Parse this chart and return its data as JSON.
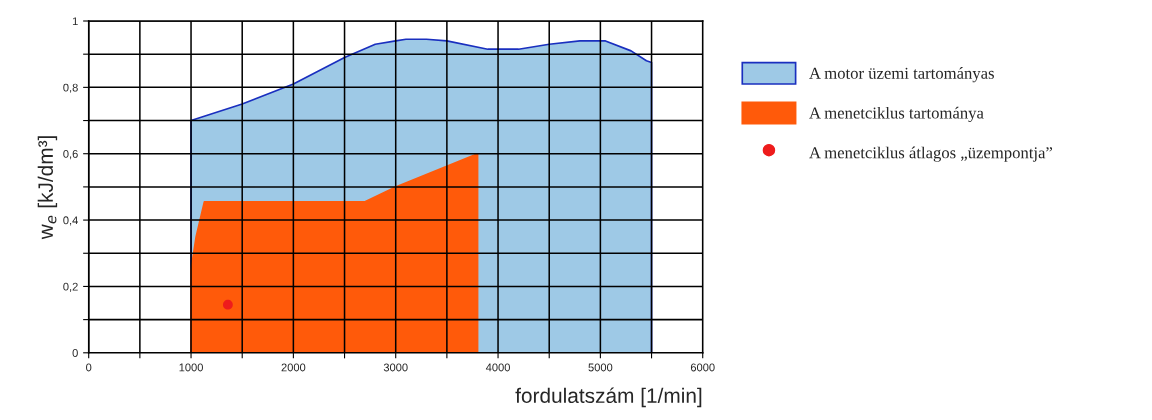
{
  "chart_data": {
    "type": "area",
    "xlabel": "fordulatszám [1/min]",
    "ylabel": "w$_{e}$ [kJ/dm³]",
    "series": [
      {
        "name": "A motor üzemi tartományas",
        "color": "#9ec9e6",
        "x": [
          1000,
          1000,
          1500,
          2000,
          2500,
          2800,
          3000,
          3100,
          3300,
          3500,
          3900,
          4200,
          4500,
          4800,
          5050,
          5300,
          5450,
          5500,
          5500
        ],
        "values": [
          0,
          0.7,
          0.75,
          0.81,
          0.89,
          0.93,
          0.94,
          0.945,
          0.945,
          0.94,
          0.915,
          0.915,
          0.93,
          0.94,
          0.94,
          0.91,
          0.88,
          0.875,
          0
        ]
      },
      {
        "name": "A menetciklus tartománya",
        "color": "#ff5a0a",
        "x": [
          1000,
          1000,
          1050,
          1130,
          2700,
          3000,
          3800,
          3800
        ],
        "values": [
          0,
          0.25,
          0.35,
          0.455,
          0.455,
          0.5,
          0.6,
          0
        ]
      },
      {
        "name": "A menetciklus átlagos „üzempontja”",
        "type": "scatter",
        "marker": "circle",
        "color": "#ee1c1c",
        "x": [
          1360
        ],
        "values": [
          0.145
        ]
      }
    ],
    "xlim": [
      0,
      6000
    ],
    "xticks": [
      0,
      {
        "value": 500,
        "label": null
      },
      1000,
      {
        "value": 1500,
        "label": null
      },
      2000,
      {
        "value": 2500,
        "label": null
      },
      3000,
      {
        "value": 3500,
        "label": null
      },
      4000,
      {
        "value": 4500,
        "label": null
      },
      5000,
      {
        "value": 5500,
        "label": null
      },
      6000
    ],
    "ylim": [
      0,
      1
    ],
    "yticks": [
      0,
      {
        "value": 0.1,
        "label": null
      },
      {
        "value": 0.2,
        "label": "0,2"
      },
      {
        "value": 0.3,
        "label": null
      },
      {
        "value": 0.4,
        "label": "0,4"
      },
      {
        "value": 0.5,
        "label": null
      },
      {
        "value": 0.6,
        "label": "0,6"
      },
      {
        "value": 0.7,
        "label": null
      },
      {
        "value": 0.8,
        "label": "0,8"
      },
      {
        "value": 0.9,
        "label": null
      },
      1
    ],
    "grid": true,
    "legend": "right"
  }
}
